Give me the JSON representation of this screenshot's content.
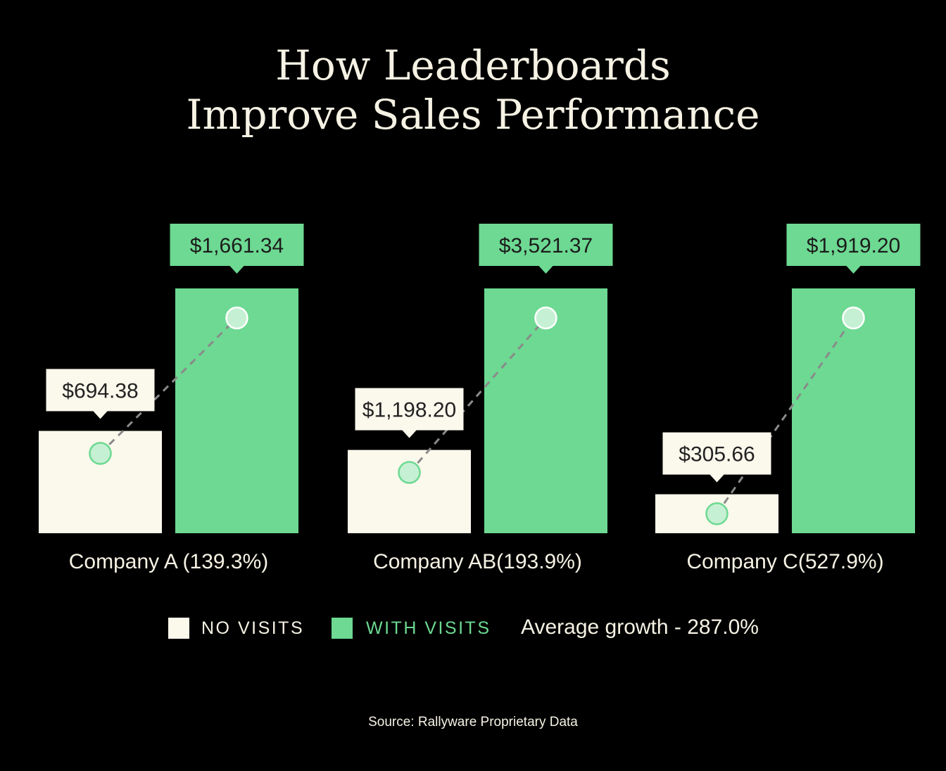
{
  "title_lines": [
    "How Leaderboards",
    "Improve Sales Performance"
  ],
  "colors": {
    "no_visits": "#fbf8ec",
    "with_visits": "#6dd992",
    "background": "#000000",
    "marker_fill": "#c6f0d3",
    "dash_line": "#8a8a8a"
  },
  "chart_data": {
    "type": "bar",
    "title": "How Leaderboards Improve Sales Performance",
    "categories": [
      "Company A (139.3%)",
      "Company AB(193.9%)",
      "Company C(527.9%)"
    ],
    "series": [
      {
        "name": "NO VISITS",
        "values": [
          694.38,
          1198.2,
          305.66
        ],
        "labels": [
          "$694.38",
          "$1,198.20",
          "$305.66"
        ]
      },
      {
        "name": "WITH VISITS",
        "values": [
          1661.34,
          3521.37,
          1919.2
        ],
        "labels": [
          "$1,661.34",
          "$3,521.37",
          "$1,919.20"
        ]
      }
    ],
    "growth_pct": [
      139.3,
      193.9,
      527.9
    ],
    "grid": false,
    "legend_position": "bottom"
  },
  "legend": {
    "no_visits_label": "NO VISITS",
    "with_visits_label": "WITH VISITS",
    "average_growth": "Average growth - 287.0%"
  },
  "source": "Source: Rallyware Proprietary Data"
}
